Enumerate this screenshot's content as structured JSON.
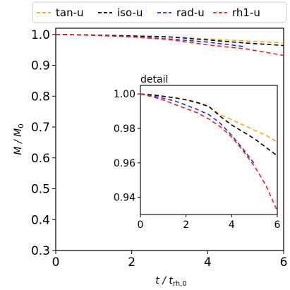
{
  "chart_data": [
    {
      "id": "main",
      "type": "line",
      "xlabel": "t / t_rh,0",
      "ylabel": "M / M_0",
      "xlim": [
        0,
        6
      ],
      "ylim": [
        0.3,
        1.02
      ],
      "xticks": [
        "0",
        "2",
        "4",
        "6"
      ],
      "yticks": [
        "0.3",
        "0.4",
        "0.5",
        "0.6",
        "0.7",
        "0.8",
        "0.9",
        "1.0"
      ],
      "legend_position": "top",
      "series": [
        {
          "name": "tan-u",
          "color": "#f5a623",
          "x": [
            0,
            1,
            2,
            3,
            4,
            5,
            6
          ],
          "y": [
            1.0,
            0.998,
            0.995,
            0.991,
            0.985,
            0.979,
            0.972
          ]
        },
        {
          "name": "iso-u",
          "color": "#000000",
          "x": [
            0,
            1,
            2,
            3,
            4,
            5,
            6
          ],
          "y": [
            1.0,
            0.998,
            0.995,
            0.992,
            0.982,
            0.972,
            0.964
          ]
        },
        {
          "name": "rad-u",
          "color": "#1f2fd6",
          "x": [
            0,
            1,
            2,
            3,
            4,
            5
          ],
          "y": [
            1.0,
            0.997,
            0.992,
            0.985,
            0.975,
            0.96
          ]
        },
        {
          "name": "rh1-u",
          "color": "#ee2222",
          "x": [
            0,
            1,
            2,
            3,
            4,
            5,
            6
          ],
          "y": [
            1.0,
            0.997,
            0.992,
            0.983,
            0.966,
            0.953,
            0.932
          ]
        }
      ]
    },
    {
      "id": "inset",
      "type": "line",
      "title": "detail",
      "xlim": [
        0,
        6
      ],
      "ylim": [
        0.93,
        1.005
      ],
      "xticks": [
        "0",
        "2",
        "4",
        "6"
      ],
      "yticks": [
        "0.94",
        "0.96",
        "0.98",
        "1.00"
      ],
      "series": [
        {
          "name": "tan-u",
          "color": "#f5a623",
          "x": [
            0,
            0.5,
            1,
            1.5,
            2,
            2.5,
            3,
            3.5,
            4,
            4.5,
            5,
            5.5,
            6
          ],
          "y": [
            1.0,
            0.9995,
            0.9987,
            0.9978,
            0.9965,
            0.9948,
            0.9925,
            0.988,
            0.985,
            0.982,
            0.979,
            0.976,
            0.972
          ]
        },
        {
          "name": "iso-u",
          "color": "#000000",
          "x": [
            0,
            0.5,
            1,
            1.5,
            2,
            2.5,
            3,
            3.5,
            4,
            4.5,
            5,
            5.5,
            6
          ],
          "y": [
            1.0,
            0.9995,
            0.9987,
            0.9978,
            0.9967,
            0.995,
            0.9928,
            0.987,
            0.982,
            0.978,
            0.974,
            0.969,
            0.964
          ]
        },
        {
          "name": "rad-u",
          "color": "#1f2fd6",
          "x": [
            0,
            0.5,
            1,
            1.5,
            2,
            2.5,
            3,
            3.5,
            4,
            4.5,
            5
          ],
          "y": [
            1.0,
            0.999,
            0.9975,
            0.996,
            0.9935,
            0.991,
            0.988,
            0.983,
            0.976,
            0.968,
            0.9595
          ]
        },
        {
          "name": "rh1-u",
          "color": "#ee2222",
          "x": [
            0,
            0.5,
            1,
            1.5,
            2,
            2.5,
            3,
            3.5,
            4,
            4.5,
            5,
            5.5,
            6
          ],
          "y": [
            1.0,
            0.9985,
            0.9965,
            0.994,
            0.9915,
            0.989,
            0.9855,
            0.981,
            0.975,
            0.967,
            0.958,
            0.947,
            0.932
          ]
        }
      ]
    }
  ]
}
